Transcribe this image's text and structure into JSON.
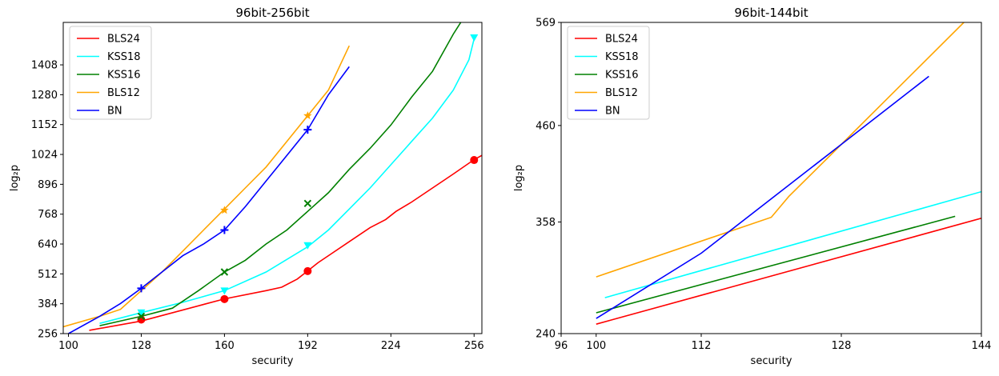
{
  "chart_data": [
    {
      "type": "line",
      "title": "96bit-256bit",
      "xlabel": "security",
      "ylabel": "log₂p",
      "xlim": [
        98,
        259
      ],
      "ylim": [
        256,
        1590
      ],
      "xticks": [
        100,
        128,
        160,
        192,
        224,
        256
      ],
      "yticks": [
        256,
        384,
        512,
        640,
        768,
        896,
        1024,
        1152,
        1280,
        1408
      ],
      "grid": false,
      "legend": "top-left",
      "series": [
        {
          "name": "BLS24",
          "color": "#ff0000",
          "marker": "circle",
          "x": [
            108,
            128,
            160,
            176,
            182,
            188,
            192,
            196,
            200,
            208,
            216,
            222,
            226,
            232,
            240,
            248,
            256,
            259
          ],
          "y": [
            270,
            310,
            405,
            440,
            455,
            490,
            525,
            560,
            590,
            650,
            710,
            745,
            780,
            820,
            880,
            940,
            1002,
            1020
          ],
          "markers_x": [
            128,
            160,
            192,
            256
          ],
          "markers_y": [
            316,
            404,
            524,
            1000
          ]
        },
        {
          "name": "KSS18",
          "color": "#00ffff",
          "marker": "triangle-down",
          "x": [
            112,
            128,
            144,
            160,
            176,
            192,
            200,
            208,
            216,
            224,
            232,
            240,
            248,
            254,
            256
          ],
          "y": [
            300,
            346,
            390,
            440,
            520,
            628,
            700,
            790,
            880,
            980,
            1080,
            1180,
            1300,
            1430,
            1520
          ],
          "markers_x": [
            128,
            160,
            192,
            256
          ],
          "markers_y": [
            346,
            440,
            634,
            1525
          ]
        },
        {
          "name": "KSS16",
          "color": "#008000",
          "marker": "x",
          "x": [
            112,
            128,
            140,
            150,
            160,
            168,
            176,
            184,
            192,
            200,
            208,
            216,
            224,
            232,
            240,
            248,
            252
          ],
          "y": [
            290,
            330,
            365,
            440,
            520,
            570,
            640,
            700,
            780,
            860,
            960,
            1050,
            1150,
            1270,
            1380,
            1540,
            1610
          ],
          "markers_x": [
            128,
            160,
            192
          ],
          "markers_y": [
            330,
            520,
            814
          ]
        },
        {
          "name": "BLS12",
          "color": "#ffa500",
          "marker": "star",
          "x": [
            98,
            112,
            120,
            128,
            136,
            144,
            152,
            160,
            168,
            176,
            184,
            192,
            200,
            208
          ],
          "y": [
            285,
            330,
            360,
            440,
            520,
            610,
            700,
            790,
            880,
            970,
            1080,
            1190,
            1300,
            1490
          ],
          "markers_x": [
            160,
            192
          ],
          "markers_y": [
            785,
            1190
          ]
        },
        {
          "name": "BN",
          "color": "#0000ff",
          "marker": "plus",
          "x": [
            100,
            112,
            120,
            128,
            136,
            144,
            152,
            160,
            168,
            176,
            184,
            192,
            200,
            208
          ],
          "y": [
            256,
            330,
            385,
            450,
            520,
            590,
            640,
            700,
            800,
            910,
            1020,
            1130,
            1280,
            1400
          ],
          "markers_x": [
            128,
            160,
            192
          ],
          "markers_y": [
            450,
            700,
            1130
          ]
        }
      ]
    },
    {
      "type": "line",
      "title": "96bit-144bit",
      "xlabel": "security",
      "ylabel": "log₂p",
      "xlim": [
        96,
        144
      ],
      "ylim": [
        240,
        569
      ],
      "xticks": [
        96,
        100,
        112,
        128,
        144
      ],
      "yticks": [
        240,
        358,
        460,
        569
      ],
      "grid": false,
      "legend": "top-left",
      "series": [
        {
          "name": "BLS24",
          "color": "#ff0000",
          "x": [
            100,
            144
          ],
          "y": [
            250,
            362
          ]
        },
        {
          "name": "KSS18",
          "color": "#00ffff",
          "x": [
            101,
            144
          ],
          "y": [
            278,
            390
          ]
        },
        {
          "name": "KSS16",
          "color": "#008000",
          "x": [
            100,
            141
          ],
          "y": [
            262,
            364
          ]
        },
        {
          "name": "BLS12",
          "color": "#ffa500",
          "x": [
            100,
            120,
            122,
            128,
            142
          ],
          "y": [
            300,
            363,
            385,
            440,
            569
          ]
        },
        {
          "name": "BN",
          "color": "#0000ff",
          "x": [
            100,
            112,
            128,
            138
          ],
          "y": [
            256,
            325,
            440,
            512
          ]
        }
      ]
    }
  ]
}
